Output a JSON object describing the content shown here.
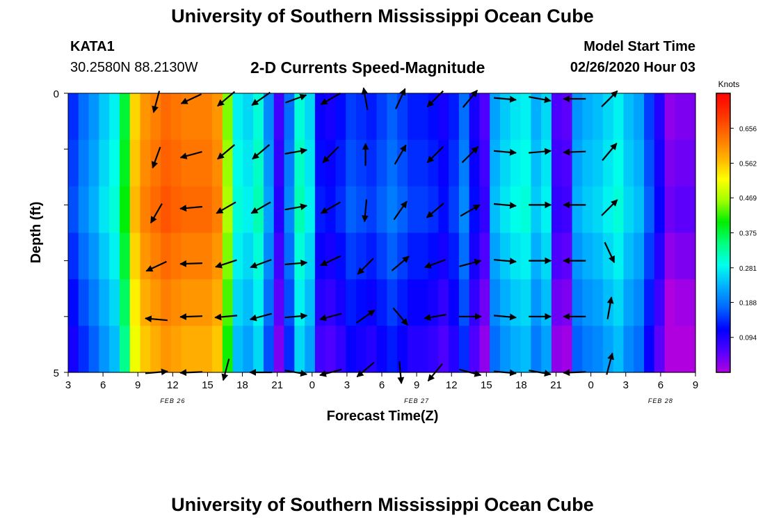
{
  "header": {
    "title": "University of Southern Mississippi Ocean Cube",
    "station_id": "KATA1",
    "station_coords": "30.2580N 88.2130W",
    "subtitle": "2-D Currents Speed-Magnitude",
    "model_start_label": "Model Start Time",
    "model_start_value": "02/26/2020 Hour 03"
  },
  "footer": {
    "title": "University of Southern Mississippi Ocean Cube"
  },
  "chart_data": {
    "type": "heatmap",
    "title": "2-D Currents Speed-Magnitude",
    "xlabel": "Forecast Time(Z)",
    "ylabel": "Depth (ft)",
    "x_tick_labels": [
      "3",
      "6",
      "9",
      "12",
      "15",
      "18",
      "21",
      "0",
      "3",
      "6",
      "9",
      "12",
      "15",
      "18",
      "21",
      "0",
      "3",
      "6",
      "9"
    ],
    "x_hours": [
      0,
      3,
      6,
      9,
      12,
      15,
      18,
      21,
      24,
      27,
      30,
      33,
      36,
      39,
      42,
      45,
      48,
      51,
      54
    ],
    "date_labels": [
      {
        "text": "FEB 26",
        "hour": 9
      },
      {
        "text": "FEB 27",
        "hour": 30
      },
      {
        "text": "FEB 28",
        "hour": 51
      }
    ],
    "y_tick_labels": [
      "0",
      "5"
    ],
    "ylim": [
      0,
      5
    ],
    "colorbar": {
      "unit": "Knots",
      "ticks": [
        "0.656",
        "0.562",
        "0.469",
        "0.375",
        "0.281",
        "0.188",
        "0.094"
      ],
      "tick_values": [
        0.656,
        0.562,
        0.469,
        0.375,
        0.281,
        0.188,
        0.094
      ],
      "range": [
        0,
        0.75
      ],
      "colors": [
        "#b000e0",
        "#5000ff",
        "#0000ff",
        "#0066ff",
        "#00b0ff",
        "#00ffee",
        "#00ff80",
        "#00ee00",
        "#a0ff00",
        "#ffff00",
        "#ffb000",
        "#ff7000",
        "#ff3300",
        "#ff0000"
      ]
    },
    "speed_columns": [
      0.14,
      0.18,
      0.21,
      0.25,
      0.28,
      0.38,
      0.55,
      0.6,
      0.62,
      0.64,
      0.63,
      0.62,
      0.62,
      0.62,
      0.6,
      0.45,
      0.28,
      0.26,
      0.3,
      0.2,
      0.07,
      0.18,
      0.3,
      0.26,
      0.11,
      0.1,
      0.12,
      0.15,
      0.14,
      0.13,
      0.15,
      0.17,
      0.15,
      0.13,
      0.13,
      0.12,
      0.1,
      0.13,
      0.18,
      0.1,
      0.06,
      0.22,
      0.25,
      0.27,
      0.28,
      0.23,
      0.26,
      0.06,
      0.05,
      0.21,
      0.23,
      0.24,
      0.26,
      0.28,
      0.24,
      0.22,
      0.15,
      0.09,
      0.02,
      0.03,
      0.03
    ],
    "row_offsets": [
      0,
      0.01,
      0.02,
      0.0,
      -0.02,
      -0.04
    ],
    "vectors": [
      {
        "hour": 7.6,
        "depth": 0.15,
        "angle": -105
      },
      {
        "hour": 7.6,
        "depth": 1.15,
        "angle": -110
      },
      {
        "hour": 7.6,
        "depth": 2.15,
        "angle": -120
      },
      {
        "hour": 7.6,
        "depth": 3.1,
        "angle": -155
      },
      {
        "hour": 7.6,
        "depth": 4.05,
        "angle": 175
      },
      {
        "hour": 7.6,
        "depth": 5.0,
        "angle": 5
      },
      {
        "hour": 10.6,
        "depth": 0.1,
        "angle": -155
      },
      {
        "hour": 10.6,
        "depth": 1.1,
        "angle": -165
      },
      {
        "hour": 10.6,
        "depth": 2.05,
        "angle": -175
      },
      {
        "hour": 10.6,
        "depth": 3.05,
        "angle": -178
      },
      {
        "hour": 10.6,
        "depth": 4.0,
        "angle": -178
      },
      {
        "hour": 10.6,
        "depth": 5.0,
        "angle": -178
      },
      {
        "hour": 13.6,
        "depth": 0.1,
        "angle": -140
      },
      {
        "hour": 13.6,
        "depth": 1.05,
        "angle": -140
      },
      {
        "hour": 13.6,
        "depth": 2.05,
        "angle": -150
      },
      {
        "hour": 13.6,
        "depth": 3.05,
        "angle": -162
      },
      {
        "hour": 13.6,
        "depth": 4.0,
        "angle": -175
      },
      {
        "hour": 13.6,
        "depth": 4.95,
        "angle": -105
      },
      {
        "hour": 16.6,
        "depth": 0.1,
        "angle": -145
      },
      {
        "hour": 16.6,
        "depth": 1.05,
        "angle": -140
      },
      {
        "hour": 16.6,
        "depth": 2.05,
        "angle": -150
      },
      {
        "hour": 16.6,
        "depth": 3.05,
        "angle": -160
      },
      {
        "hour": 16.6,
        "depth": 4.0,
        "angle": -165
      },
      {
        "hour": 16.6,
        "depth": 5.0,
        "angle": -180
      },
      {
        "hour": 19.6,
        "depth": 0.1,
        "angle": 20
      },
      {
        "hour": 19.6,
        "depth": 1.05,
        "angle": 10
      },
      {
        "hour": 19.6,
        "depth": 2.05,
        "angle": 10
      },
      {
        "hour": 19.6,
        "depth": 3.05,
        "angle": 5
      },
      {
        "hour": 19.6,
        "depth": 4.0,
        "angle": 5
      },
      {
        "hour": 19.6,
        "depth": 5.0,
        "angle": -10
      },
      {
        "hour": 22.6,
        "depth": 0.1,
        "angle": -150
      },
      {
        "hour": 22.6,
        "depth": 1.1,
        "angle": -135
      },
      {
        "hour": 22.6,
        "depth": 2.05,
        "angle": -150
      },
      {
        "hour": 22.6,
        "depth": 3.0,
        "angle": -155
      },
      {
        "hour": 22.6,
        "depth": 4.0,
        "angle": -165
      },
      {
        "hour": 22.6,
        "depth": 5.0,
        "angle": -165
      },
      {
        "hour": 25.6,
        "depth": 0.1,
        "angle": 100
      },
      {
        "hour": 25.6,
        "depth": 1.1,
        "angle": 90
      },
      {
        "hour": 25.6,
        "depth": 2.1,
        "angle": -95
      },
      {
        "hour": 25.6,
        "depth": 3.1,
        "angle": -135
      },
      {
        "hour": 25.6,
        "depth": 4.0,
        "angle": 35
      },
      {
        "hour": 25.6,
        "depth": 4.95,
        "angle": -140
      },
      {
        "hour": 28.6,
        "depth": 0.1,
        "angle": 65
      },
      {
        "hour": 28.6,
        "depth": 1.1,
        "angle": 60
      },
      {
        "hour": 28.6,
        "depth": 2.1,
        "angle": 55
      },
      {
        "hour": 28.6,
        "depth": 3.05,
        "angle": 40
      },
      {
        "hour": 28.6,
        "depth": 4.0,
        "angle": -50
      },
      {
        "hour": 28.6,
        "depth": 5.0,
        "angle": -85
      },
      {
        "hour": 31.6,
        "depth": 0.1,
        "angle": -135
      },
      {
        "hour": 31.6,
        "depth": 1.1,
        "angle": -135
      },
      {
        "hour": 31.6,
        "depth": 2.1,
        "angle": -140
      },
      {
        "hour": 31.6,
        "depth": 3.05,
        "angle": -160
      },
      {
        "hour": 31.6,
        "depth": 4.0,
        "angle": -170
      },
      {
        "hour": 31.6,
        "depth": 5.0,
        "angle": -130
      },
      {
        "hour": 34.6,
        "depth": 0.1,
        "angle": 50
      },
      {
        "hour": 34.6,
        "depth": 1.1,
        "angle": 45
      },
      {
        "hour": 34.6,
        "depth": 2.1,
        "angle": 30
      },
      {
        "hour": 34.6,
        "depth": 3.05,
        "angle": 15
      },
      {
        "hour": 34.6,
        "depth": 4.0,
        "angle": 0
      },
      {
        "hour": 34.6,
        "depth": 5.0,
        "angle": -15
      },
      {
        "hour": 37.6,
        "depth": 0.1,
        "angle": -5
      },
      {
        "hour": 37.6,
        "depth": 1.05,
        "angle": -5
      },
      {
        "hour": 37.6,
        "depth": 2.0,
        "angle": -5
      },
      {
        "hour": 37.6,
        "depth": 3.0,
        "angle": -5
      },
      {
        "hour": 37.6,
        "depth": 4.0,
        "angle": -5
      },
      {
        "hour": 37.6,
        "depth": 5.0,
        "angle": -5
      },
      {
        "hour": 40.6,
        "depth": 0.1,
        "angle": -10
      },
      {
        "hour": 40.6,
        "depth": 1.05,
        "angle": 5
      },
      {
        "hour": 40.6,
        "depth": 2.0,
        "angle": 0
      },
      {
        "hour": 40.6,
        "depth": 3.0,
        "angle": 0
      },
      {
        "hour": 40.6,
        "depth": 4.0,
        "angle": 0
      },
      {
        "hour": 40.6,
        "depth": 5.0,
        "angle": -10
      },
      {
        "hour": 43.6,
        "depth": 0.1,
        "angle": 180
      },
      {
        "hour": 43.6,
        "depth": 1.05,
        "angle": -178
      },
      {
        "hour": 43.6,
        "depth": 2.0,
        "angle": 180
      },
      {
        "hour": 43.6,
        "depth": 3.0,
        "angle": 180
      },
      {
        "hour": 43.6,
        "depth": 4.0,
        "angle": 180
      },
      {
        "hour": 43.6,
        "depth": 5.0,
        "angle": -178
      },
      {
        "hour": 46.6,
        "depth": 0.1,
        "angle": 45
      },
      {
        "hour": 46.6,
        "depth": 1.05,
        "angle": 50
      },
      {
        "hour": 46.6,
        "depth": 2.05,
        "angle": 45
      },
      {
        "hour": 46.6,
        "depth": 2.85,
        "angle": -65
      },
      {
        "hour": 46.6,
        "depth": 3.85,
        "angle": 80
      },
      {
        "hour": 46.6,
        "depth": 4.85,
        "angle": 75
      }
    ]
  }
}
